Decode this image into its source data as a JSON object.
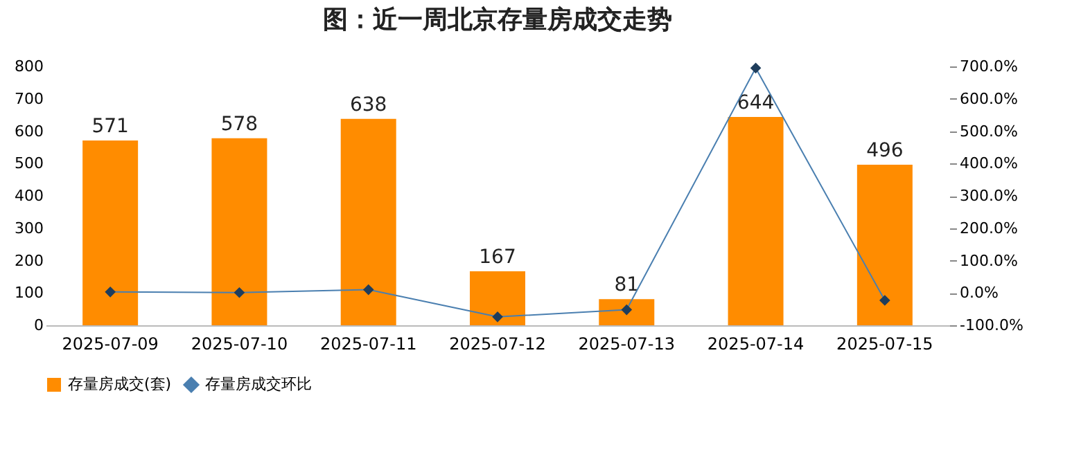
{
  "chart_data": {
    "type": "bar",
    "title": "图：近一周北京存量房成交走势",
    "categories": [
      "2025-07-09",
      "2025-07-10",
      "2025-07-11",
      "2025-07-12",
      "2025-07-13",
      "2025-07-14",
      "2025-07-15"
    ],
    "series": [
      {
        "name": "存量房成交(套)",
        "color": "#ff8c00",
        "values": [
          571,
          578,
          638,
          167,
          81,
          644,
          496
        ],
        "value_labels": [
          "571",
          "578",
          "638",
          "167",
          "81",
          "644",
          "496"
        ]
      },
      {
        "name": "存量房成交环比",
        "type": "line",
        "axis": "y2",
        "color": "#4a7fb0",
        "values": [
          3,
          1,
          10,
          -74,
          -52,
          695,
          -23
        ]
      }
    ],
    "ylim": [
      0,
      800
    ],
    "yticks": [
      0,
      100,
      200,
      300,
      400,
      500,
      600,
      700,
      800
    ],
    "y2lim": [
      -100,
      700
    ],
    "y2ticks": [
      {
        "value": -100,
        "label": "-100.0%"
      },
      {
        "value": 0,
        "label": "0.0%"
      },
      {
        "value": 100,
        "label": "100.0%"
      },
      {
        "value": 200,
        "label": "200.0%"
      },
      {
        "value": 300,
        "label": "300.0%"
      },
      {
        "value": 400,
        "label": "400.0%"
      },
      {
        "value": 500,
        "label": "500.0%"
      },
      {
        "value": 600,
        "label": "600.0%"
      },
      {
        "value": 700,
        "label": "700.0%"
      }
    ],
    "grid": false,
    "legend": "bottom",
    "marker": "diamond",
    "line_style": "solid"
  }
}
